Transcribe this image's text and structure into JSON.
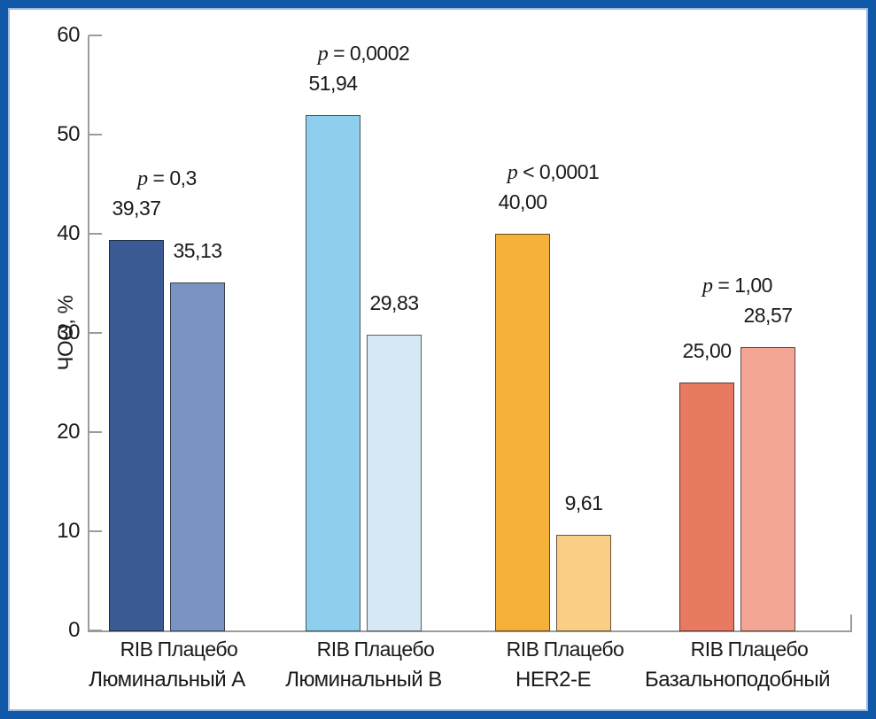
{
  "frame": {
    "border_color": "#1158A8",
    "inner_line_color": "#9DBBDE"
  },
  "chart_data": {
    "type": "bar",
    "title": "",
    "xlabel": "",
    "ylabel": "ЧОО, %",
    "ylim": [
      0,
      60
    ],
    "yticks": [
      "0",
      "10",
      "20",
      "30",
      "40",
      "50",
      "60"
    ],
    "grid": false,
    "legend": "none",
    "axis_color": "#9B9B9B",
    "text_color": "#1A1A1A",
    "bar_condition_labels": [
      "RIB",
      "Плацебо"
    ],
    "groups": [
      {
        "name": "Люминальный A",
        "p_label": "p = 0,3",
        "bars": [
          {
            "label": "RIB",
            "value": 39.37,
            "value_label": "39,37",
            "color": "#3B5A94"
          },
          {
            "label": "Плацебо",
            "value": 35.13,
            "value_label": "35,13",
            "color": "#7A93C1"
          }
        ]
      },
      {
        "name": "Люминальный B",
        "p_label": "p = 0,0002",
        "bars": [
          {
            "label": "RIB",
            "value": 51.94,
            "value_label": "51,94",
            "color": "#8FCFEE"
          },
          {
            "label": "Плацебо",
            "value": 29.83,
            "value_label": "29,83",
            "color": "#D8E9F6"
          }
        ]
      },
      {
        "name": "HER2-E",
        "p_label": "p < 0,0001",
        "bars": [
          {
            "label": "RIB",
            "value": 40.0,
            "value_label": "40,00",
            "color": "#F5B13A"
          },
          {
            "label": "Плацебо",
            "value": 9.61,
            "value_label": "9,61",
            "color": "#FACE85"
          }
        ]
      },
      {
        "name": "Базальноподобный",
        "p_label": "p = 1,00",
        "bars": [
          {
            "label": "RIB",
            "value": 25.0,
            "value_label": "25,00",
            "color": "#E87A61"
          },
          {
            "label": "Плацебо",
            "value": 28.57,
            "value_label": "28,57",
            "color": "#F2A693"
          }
        ]
      }
    ]
  }
}
